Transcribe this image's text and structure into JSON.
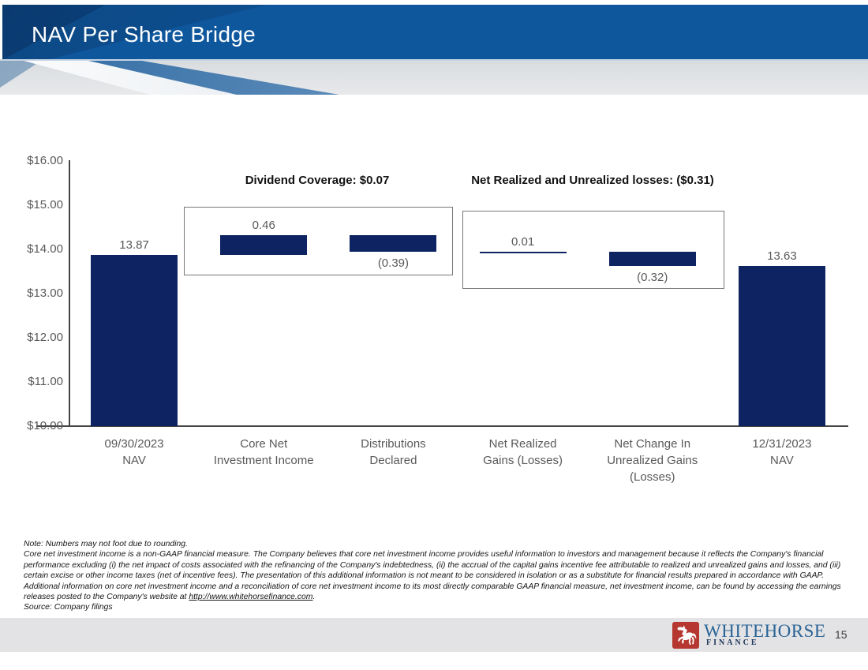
{
  "header": {
    "title": "NAV Per Share Bridge"
  },
  "chart_data": {
    "type": "bar",
    "subtype": "waterfall",
    "title": "NAV Per Share Bridge",
    "ylim": [
      10,
      16
    ],
    "grid": false,
    "bar_color": "#0e2362",
    "axis_color": "#454545",
    "label_color": "#595959",
    "y_ticks": [
      {
        "label": "$16.00",
        "value": 16
      },
      {
        "label": "$15.00",
        "value": 15
      },
      {
        "label": "$14.00",
        "value": 14
      },
      {
        "label": "$13.00",
        "value": 13
      },
      {
        "label": "$12.00",
        "value": 12
      },
      {
        "label": "$11.00",
        "value": 11
      },
      {
        "label": "$10.00",
        "value": 10
      }
    ],
    "bars": [
      {
        "category": "09/30/2023\nNAV",
        "value": 13.87,
        "label": "13.87",
        "from": 10,
        "to": 13.87,
        "label_pos": "above"
      },
      {
        "category": "Core Net\nInvestment Income",
        "value": 0.46,
        "label": "0.46",
        "from": 13.87,
        "to": 14.33,
        "label_pos": "above"
      },
      {
        "category": "Distributions\nDeclared",
        "value": -0.39,
        "label": "(0.39)",
        "from": 14.33,
        "to": 13.94,
        "label_pos": "below"
      },
      {
        "category": "Net Realized\nGains (Losses)",
        "value": 0.01,
        "label": "0.01",
        "from": 13.94,
        "to": 13.95,
        "label_pos": "above"
      },
      {
        "category": "Net Change In\nUnrealized Gains\n(Losses)",
        "value": -0.32,
        "label": "(0.32)",
        "from": 13.95,
        "to": 13.63,
        "label_pos": "below"
      },
      {
        "category": "12/31/2023\nNAV",
        "value": 13.63,
        "label": "13.63",
        "from": 10,
        "to": 13.63,
        "label_pos": "above"
      }
    ],
    "annotations": [
      {
        "text": "Dividend Coverage: $0.07"
      },
      {
        "text": "Net Realized and Unrealized losses: ($0.31)"
      }
    ]
  },
  "footnotes": {
    "lines": [
      "Note: Numbers may not foot due to rounding.",
      "Core net investment income is a non-GAAP financial measure. The Company believes that core net investment income provides useful information to investors and management because it reflects the Company's financial",
      "performance excluding (i) the net impact of costs associated with the refinancing of the Company's indebtedness, (ii) the accrual of the capital gains incentive fee attributable to realized and unrealized gains and losses, and (iii)",
      "certain excise or other income taxes (net of incentive fees). The presentation of this additional information is not meant to be considered in isolation or as a substitute for financial results prepared in accordance with GAAP.",
      "Additional information on core net investment income and a reconciliation of core net investment income to its most directly comparable GAAP financial measure, net investment income, can be found by accessing the earnings"
    ],
    "line6_pre": "releases posted to the Company's website at ",
    "line6_url": "http://www.whitehorsefinance.com",
    "line6_post": ".",
    "source": "Source: Company filings"
  },
  "footer": {
    "logo_name": "WHITEHORSE",
    "logo_sub": "FINANCE",
    "page_number": "15",
    "logo_red": "#b5372f",
    "logo_blue": "#2a6496",
    "logo_navy": "#1d3459"
  }
}
